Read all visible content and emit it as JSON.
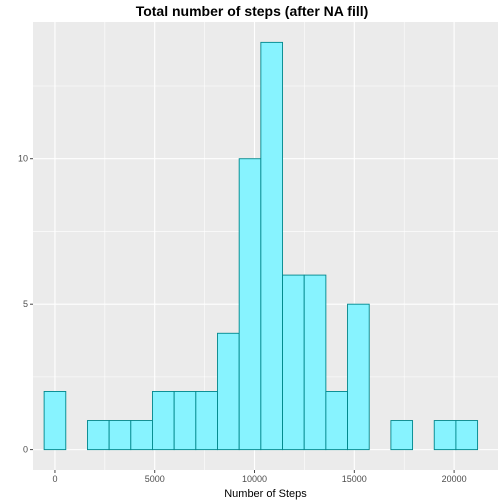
{
  "chart_data": {
    "type": "bar",
    "title": "Total number of steps (after NA fill)",
    "xlabel": "Number of Steps",
    "ylabel": "",
    "xlim": [
      -1100,
      22200
    ],
    "ylim": [
      -0.7,
      14.7
    ],
    "x_ticks": [
      0,
      5000,
      10000,
      15000,
      20000
    ],
    "x_tick_labels": [
      "0",
      "5000",
      "10000",
      "15000",
      "20000"
    ],
    "y_ticks": [
      0,
      5,
      10
    ],
    "y_tick_labels": [
      "0",
      "5",
      "10"
    ],
    "bin_width": 1086,
    "bins": [
      {
        "x0": -543,
        "x1": 543,
        "count": 2
      },
      {
        "x0": 543,
        "x1": 1629,
        "count": 0
      },
      {
        "x0": 1629,
        "x1": 2715,
        "count": 1
      },
      {
        "x0": 2715,
        "x1": 3801,
        "count": 1
      },
      {
        "x0": 3801,
        "x1": 4887,
        "count": 1
      },
      {
        "x0": 4887,
        "x1": 5973,
        "count": 2
      },
      {
        "x0": 5973,
        "x1": 7059,
        "count": 2
      },
      {
        "x0": 7059,
        "x1": 8145,
        "count": 2
      },
      {
        "x0": 8145,
        "x1": 9231,
        "count": 4
      },
      {
        "x0": 9231,
        "x1": 10317,
        "count": 10
      },
      {
        "x0": 10317,
        "x1": 11403,
        "count": 14
      },
      {
        "x0": 11403,
        "x1": 12489,
        "count": 6
      },
      {
        "x0": 12489,
        "x1": 13575,
        "count": 6
      },
      {
        "x0": 13575,
        "x1": 14661,
        "count": 2
      },
      {
        "x0": 14661,
        "x1": 15747,
        "count": 5
      },
      {
        "x0": 15747,
        "x1": 16833,
        "count": 0
      },
      {
        "x0": 16833,
        "x1": 17919,
        "count": 1
      },
      {
        "x0": 17919,
        "x1": 19005,
        "count": 0
      },
      {
        "x0": 19005,
        "x1": 20091,
        "count": 1
      },
      {
        "x0": 20091,
        "x1": 21177,
        "count": 1
      }
    ],
    "grid": true,
    "colors": {
      "panel_background": "#ebebeb",
      "grid_major": "#ffffff",
      "bar_fill": "#87f3ff",
      "bar_outline": "#00868b"
    }
  }
}
